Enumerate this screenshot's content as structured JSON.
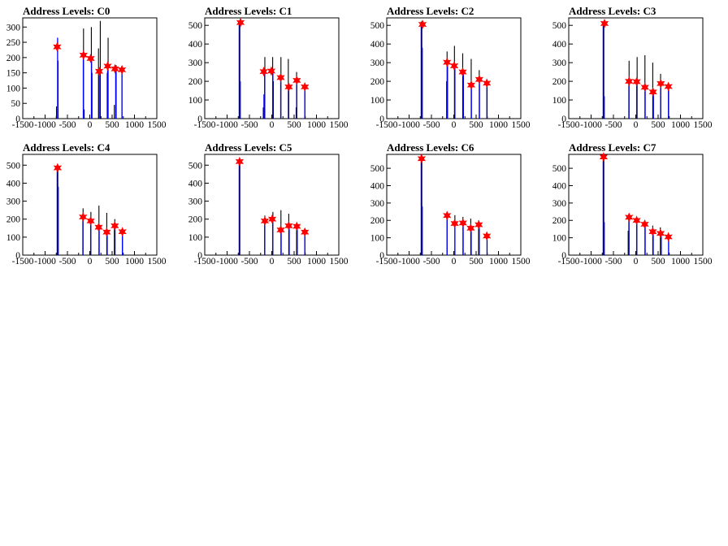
{
  "chart_data": [
    {
      "type": "bar",
      "title": "Address Levels: C0",
      "xlim": [
        -1500,
        1500
      ],
      "ylim": [
        0,
        330
      ],
      "xticks": [
        -1500,
        -1000,
        -500,
        0,
        500,
        1000,
        1500
      ],
      "yticks": [
        0,
        50,
        100,
        150,
        200,
        250,
        300
      ],
      "black_spikes": [
        {
          "x": -745,
          "y": 40
        },
        {
          "x": -140,
          "y": 295
        },
        {
          "x": -125,
          "y": 30
        },
        {
          "x": 35,
          "y": 300
        },
        {
          "x": 50,
          "y": 150
        },
        {
          "x": 195,
          "y": 230
        },
        {
          "x": 235,
          "y": 320
        },
        {
          "x": 390,
          "y": 150
        },
        {
          "x": 410,
          "y": 265
        },
        {
          "x": 550,
          "y": 45
        },
        {
          "x": 590,
          "y": 175
        },
        {
          "x": 720,
          "y": 160
        }
      ],
      "blue_spikes": [
        {
          "x": -720,
          "y": 265
        },
        {
          "x": -710,
          "y": 190
        },
        {
          "x": -145,
          "y": 210
        },
        {
          "x": 40,
          "y": 200
        },
        {
          "x": 210,
          "y": 155
        },
        {
          "x": 400,
          "y": 170
        },
        {
          "x": 580,
          "y": 165
        },
        {
          "x": 720,
          "y": 160
        }
      ],
      "peaks": [
        {
          "x": -730,
          "y": 235
        },
        {
          "x": -140,
          "y": 208
        },
        {
          "x": 20,
          "y": 197
        },
        {
          "x": 210,
          "y": 155
        },
        {
          "x": 400,
          "y": 172
        },
        {
          "x": 565,
          "y": 163
        },
        {
          "x": 720,
          "y": 160
        }
      ]
    },
    {
      "type": "bar",
      "title": "Address Levels: C1",
      "xlim": [
        -1500,
        1500
      ],
      "ylim": [
        0,
        540
      ],
      "xticks": [
        -1500,
        -1000,
        -500,
        0,
        500,
        1000,
        1500
      ],
      "yticks": [
        0,
        100,
        200,
        300,
        400,
        500
      ],
      "black_spikes": [
        {
          "x": -730,
          "y": 525
        },
        {
          "x": -190,
          "y": 60
        },
        {
          "x": -155,
          "y": 330
        },
        {
          "x": 20,
          "y": 330
        },
        {
          "x": 35,
          "y": 200
        },
        {
          "x": 205,
          "y": 330
        },
        {
          "x": 370,
          "y": 320
        },
        {
          "x": 545,
          "y": 60
        },
        {
          "x": 555,
          "y": 250
        },
        {
          "x": 740,
          "y": 170
        }
      ],
      "blue_spikes": [
        {
          "x": -715,
          "y": 510
        },
        {
          "x": -705,
          "y": 200
        },
        {
          "x": -175,
          "y": 130
        },
        {
          "x": -160,
          "y": 250
        },
        {
          "x": 25,
          "y": 250
        },
        {
          "x": 200,
          "y": 220
        },
        {
          "x": 380,
          "y": 165
        },
        {
          "x": 560,
          "y": 200
        },
        {
          "x": 740,
          "y": 165
        }
      ],
      "peaks": [
        {
          "x": -700,
          "y": 515
        },
        {
          "x": -180,
          "y": 252
        },
        {
          "x": -10,
          "y": 255
        },
        {
          "x": 200,
          "y": 220
        },
        {
          "x": 380,
          "y": 170
        },
        {
          "x": 560,
          "y": 205
        },
        {
          "x": 740,
          "y": 170
        }
      ]
    },
    {
      "type": "bar",
      "title": "Address Levels: C2",
      "xlim": [
        -1500,
        1500
      ],
      "ylim": [
        0,
        540
      ],
      "xticks": [
        -1500,
        -1000,
        -500,
        0,
        500,
        1000,
        1500
      ],
      "yticks": [
        0,
        100,
        200,
        300,
        400,
        500
      ],
      "black_spikes": [
        {
          "x": -730,
          "y": 520
        },
        {
          "x": -150,
          "y": 360
        },
        {
          "x": 15,
          "y": 390
        },
        {
          "x": 200,
          "y": 350
        },
        {
          "x": 210,
          "y": 250
        },
        {
          "x": 390,
          "y": 320
        },
        {
          "x": 570,
          "y": 260
        },
        {
          "x": 740,
          "y": 200
        }
      ],
      "blue_spikes": [
        {
          "x": -715,
          "y": 500
        },
        {
          "x": -705,
          "y": 380
        },
        {
          "x": -160,
          "y": 200
        },
        {
          "x": -140,
          "y": 300
        },
        {
          "x": 25,
          "y": 280
        },
        {
          "x": 215,
          "y": 240
        },
        {
          "x": 395,
          "y": 180
        },
        {
          "x": 575,
          "y": 210
        },
        {
          "x": 745,
          "y": 185
        }
      ],
      "peaks": [
        {
          "x": -700,
          "y": 505
        },
        {
          "x": -150,
          "y": 302
        },
        {
          "x": 10,
          "y": 283
        },
        {
          "x": 200,
          "y": 250
        },
        {
          "x": 390,
          "y": 180
        },
        {
          "x": 570,
          "y": 210
        },
        {
          "x": 740,
          "y": 190
        }
      ]
    },
    {
      "type": "bar",
      "title": "Address Levels: C3",
      "xlim": [
        -1500,
        1500
      ],
      "ylim": [
        0,
        540
      ],
      "xticks": [
        -1500,
        -1000,
        -500,
        0,
        500,
        1000,
        1500
      ],
      "yticks": [
        0,
        100,
        200,
        300,
        400,
        500
      ],
      "black_spikes": [
        {
          "x": -730,
          "y": 520
        },
        {
          "x": -150,
          "y": 310
        },
        {
          "x": 30,
          "y": 330
        },
        {
          "x": 205,
          "y": 340
        },
        {
          "x": 380,
          "y": 300
        },
        {
          "x": 555,
          "y": 240
        },
        {
          "x": 730,
          "y": 180
        }
      ],
      "blue_spikes": [
        {
          "x": -715,
          "y": 500
        },
        {
          "x": -705,
          "y": 120
        },
        {
          "x": -155,
          "y": 200
        },
        {
          "x": 20,
          "y": 200
        },
        {
          "x": 210,
          "y": 170
        },
        {
          "x": 395,
          "y": 140
        },
        {
          "x": 560,
          "y": 185
        },
        {
          "x": 735,
          "y": 170
        }
      ],
      "peaks": [
        {
          "x": -700,
          "y": 510
        },
        {
          "x": -150,
          "y": 200
        },
        {
          "x": 20,
          "y": 198
        },
        {
          "x": 205,
          "y": 168
        },
        {
          "x": 385,
          "y": 143
        },
        {
          "x": 560,
          "y": 188
        },
        {
          "x": 730,
          "y": 172
        }
      ]
    },
    {
      "type": "bar",
      "title": "Address Levels: C4",
      "xlim": [
        -1500,
        1500
      ],
      "ylim": [
        0,
        560
      ],
      "xticks": [
        -1500,
        -1000,
        -500,
        0,
        500,
        1000,
        1500
      ],
      "yticks": [
        0,
        100,
        200,
        300,
        400,
        500
      ],
      "black_spikes": [
        {
          "x": -730,
          "y": 500
        },
        {
          "x": -150,
          "y": 260
        },
        {
          "x": 25,
          "y": 240
        },
        {
          "x": 205,
          "y": 275
        },
        {
          "x": 380,
          "y": 235
        },
        {
          "x": 550,
          "y": 160
        },
        {
          "x": 560,
          "y": 200
        },
        {
          "x": 730,
          "y": 140
        }
      ],
      "blue_spikes": [
        {
          "x": -715,
          "y": 480
        },
        {
          "x": -705,
          "y": 380
        },
        {
          "x": -155,
          "y": 210
        },
        {
          "x": 20,
          "y": 190
        },
        {
          "x": 210,
          "y": 150
        },
        {
          "x": 390,
          "y": 125
        },
        {
          "x": 565,
          "y": 160
        },
        {
          "x": 730,
          "y": 125
        }
      ],
      "peaks": [
        {
          "x": -720,
          "y": 485
        },
        {
          "x": -150,
          "y": 212
        },
        {
          "x": 20,
          "y": 190
        },
        {
          "x": 200,
          "y": 155
        },
        {
          "x": 380,
          "y": 128
        },
        {
          "x": 560,
          "y": 163
        },
        {
          "x": 730,
          "y": 130
        }
      ]
    },
    {
      "type": "bar",
      "title": "Address Levels: C5",
      "xlim": [
        -1500,
        1500
      ],
      "ylim": [
        0,
        560
      ],
      "xticks": [
        -1500,
        -1000,
        -500,
        0,
        500,
        1000,
        1500
      ],
      "yticks": [
        0,
        100,
        200,
        300,
        400,
        500
      ],
      "black_spikes": [
        {
          "x": -730,
          "y": 530
        },
        {
          "x": -155,
          "y": 220
        },
        {
          "x": 25,
          "y": 240
        },
        {
          "x": 205,
          "y": 250
        },
        {
          "x": 380,
          "y": 230
        },
        {
          "x": 555,
          "y": 160
        },
        {
          "x": 740,
          "y": 130
        }
      ],
      "blue_spikes": [
        {
          "x": -715,
          "y": 515
        },
        {
          "x": -160,
          "y": 190
        },
        {
          "x": 20,
          "y": 200
        },
        {
          "x": 210,
          "y": 140
        },
        {
          "x": 390,
          "y": 165
        },
        {
          "x": 570,
          "y": 160
        },
        {
          "x": 740,
          "y": 125
        }
      ],
      "peaks": [
        {
          "x": -720,
          "y": 520
        },
        {
          "x": -155,
          "y": 190
        },
        {
          "x": 10,
          "y": 200
        },
        {
          "x": 200,
          "y": 140
        },
        {
          "x": 380,
          "y": 163
        },
        {
          "x": 560,
          "y": 160
        },
        {
          "x": 740,
          "y": 128
        }
      ]
    },
    {
      "type": "bar",
      "title": "Address Levels: C6",
      "xlim": [
        -1500,
        1500
      ],
      "ylim": [
        0,
        580
      ],
      "xticks": [
        -1500,
        -1000,
        -500,
        0,
        500,
        1000,
        1500
      ],
      "yticks": [
        0,
        100,
        200,
        300,
        400,
        500
      ],
      "black_spikes": [
        {
          "x": -730,
          "y": 580
        },
        {
          "x": -150,
          "y": 220
        },
        {
          "x": 25,
          "y": 230
        },
        {
          "x": 205,
          "y": 220
        },
        {
          "x": 380,
          "y": 210
        },
        {
          "x": 555,
          "y": 200
        },
        {
          "x": 745,
          "y": 120
        }
      ],
      "blue_spikes": [
        {
          "x": -715,
          "y": 550
        },
        {
          "x": -705,
          "y": 280
        },
        {
          "x": -150,
          "y": 225
        },
        {
          "x": 25,
          "y": 180
        },
        {
          "x": 210,
          "y": 180
        },
        {
          "x": 390,
          "y": 155
        },
        {
          "x": 570,
          "y": 175
        },
        {
          "x": 745,
          "y": 110
        }
      ],
      "peaks": [
        {
          "x": -720,
          "y": 555
        },
        {
          "x": -150,
          "y": 228
        },
        {
          "x": 20,
          "y": 182
        },
        {
          "x": 205,
          "y": 185
        },
        {
          "x": 380,
          "y": 155
        },
        {
          "x": 560,
          "y": 175
        },
        {
          "x": 740,
          "y": 110
        }
      ]
    },
    {
      "type": "bar",
      "title": "Address Levels: C7",
      "xlim": [
        -1500,
        1500
      ],
      "ylim": [
        0,
        580
      ],
      "xticks": [
        -1500,
        -1000,
        -500,
        0,
        500,
        1000,
        1500
      ],
      "yticks": [
        0,
        100,
        200,
        300,
        400,
        500
      ],
      "black_spikes": [
        {
          "x": -730,
          "y": 575
        },
        {
          "x": -170,
          "y": 140
        },
        {
          "x": -150,
          "y": 215
        },
        {
          "x": 25,
          "y": 210
        },
        {
          "x": 205,
          "y": 200
        },
        {
          "x": 380,
          "y": 170
        },
        {
          "x": 550,
          "y": 160
        },
        {
          "x": 735,
          "y": 120
        }
      ],
      "blue_spikes": [
        {
          "x": -715,
          "y": 560
        },
        {
          "x": -705,
          "y": 190
        },
        {
          "x": -155,
          "y": 210
        },
        {
          "x": 20,
          "y": 195
        },
        {
          "x": 210,
          "y": 175
        },
        {
          "x": 390,
          "y": 130
        },
        {
          "x": 570,
          "y": 120
        },
        {
          "x": 735,
          "y": 100
        }
      ],
      "peaks": [
        {
          "x": -720,
          "y": 565
        },
        {
          "x": -150,
          "y": 218
        },
        {
          "x": 20,
          "y": 200
        },
        {
          "x": 200,
          "y": 178
        },
        {
          "x": 380,
          "y": 135
        },
        {
          "x": 555,
          "y": 125
        },
        {
          "x": 730,
          "y": 105
        }
      ]
    }
  ],
  "colors": {
    "black_spike": "#000000",
    "blue_spike": "#0000ff",
    "peak_marker": "#ff0000"
  }
}
